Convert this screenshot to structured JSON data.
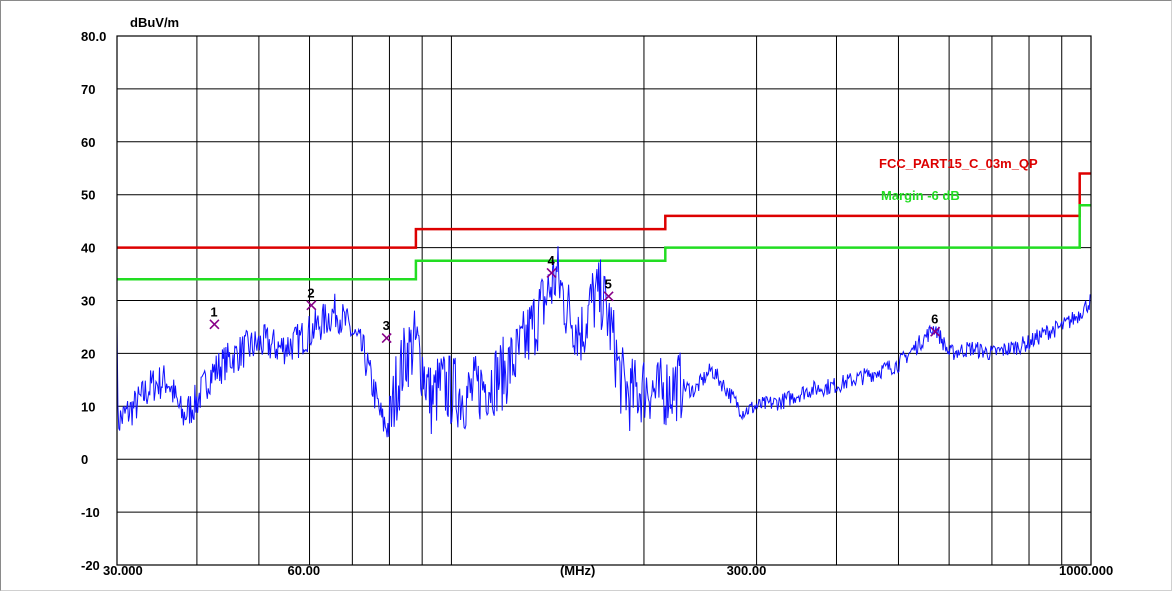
{
  "chart_data": {
    "type": "line",
    "title": "",
    "ylabel": "dBuV/m",
    "xlabel": "(MHz)",
    "x_scale": "log",
    "xlim": [
      30,
      1000
    ],
    "ylim": [
      -20,
      80
    ],
    "grid": true,
    "y_ticks": [
      "80.0",
      "70",
      "60",
      "50",
      "40",
      "30",
      "20",
      "10",
      "0",
      "-10",
      "-20"
    ],
    "x_ticks": [
      "30.000",
      "60.00",
      "(MHz)",
      "300.00",
      "1000.000"
    ],
    "x_grid": [
      40,
      50,
      60,
      70,
      80,
      90,
      100,
      200,
      300,
      400,
      500,
      600,
      700,
      800,
      900
    ],
    "colors": {
      "trace": "#1010ff",
      "limit": "#dd0000",
      "margin": "#22dd22",
      "marker": "#880088",
      "grid": "#000000"
    },
    "series": [
      {
        "name": "FCC_PART15_C_03m_QP",
        "color": "#dd0000",
        "x": [
          30,
          88,
          88,
          216,
          216,
          960,
          960,
          1000
        ],
        "y": [
          40,
          40,
          43.5,
          43.5,
          46,
          46,
          54,
          54
        ]
      },
      {
        "name": "Margin -6 dB",
        "color": "#22dd22",
        "x": [
          30,
          88,
          88,
          216,
          216,
          960,
          960,
          1000
        ],
        "y": [
          34,
          34,
          37.5,
          37.5,
          40,
          40,
          48,
          48
        ]
      },
      {
        "color": "#1010ff",
        "x": [
          30,
          32,
          34,
          36,
          38,
          40,
          42,
          45,
          48,
          51,
          54,
          57,
          60,
          63,
          66,
          70,
          73,
          76,
          78,
          80,
          82,
          85,
          88,
          90,
          93,
          96,
          100,
          106,
          112,
          120,
          128,
          135,
          140,
          146,
          152,
          160,
          166,
          172,
          178,
          184,
          190,
          196,
          203,
          210,
          216,
          225,
          240,
          255,
          270,
          285,
          300,
          330,
          360,
          400,
          450,
          500,
          540,
          570,
          600,
          650,
          700,
          750,
          800,
          850,
          900,
          950,
          1000
        ],
        "y": [
          7,
          10,
          14,
          15,
          8,
          11,
          16,
          19,
          21,
          22,
          21,
          22,
          24,
          26,
          28,
          24,
          20,
          12,
          7,
          6,
          14,
          20,
          22,
          18,
          11,
          14,
          13,
          12,
          14,
          16,
          20,
          26,
          30,
          35,
          28,
          24,
          30,
          31,
          24,
          15,
          12,
          13,
          14,
          12,
          13,
          14,
          13,
          17,
          13,
          9,
          10,
          11,
          13,
          14,
          16,
          18,
          22,
          25,
          20,
          21,
          20,
          21,
          22,
          24,
          25,
          27,
          30
        ]
      }
    ],
    "markers": [
      {
        "label": "1",
        "x": 42.6,
        "y": 25.5
      },
      {
        "label": "2",
        "x": 60.4,
        "y": 29.1
      },
      {
        "label": "3",
        "x": 79.2,
        "y": 22.9
      },
      {
        "label": "4",
        "x": 143.4,
        "y": 35.2
      },
      {
        "label": "5",
        "x": 176.1,
        "y": 30.8
      },
      {
        "label": "6",
        "x": 570.6,
        "y": 24.1
      }
    ]
  }
}
